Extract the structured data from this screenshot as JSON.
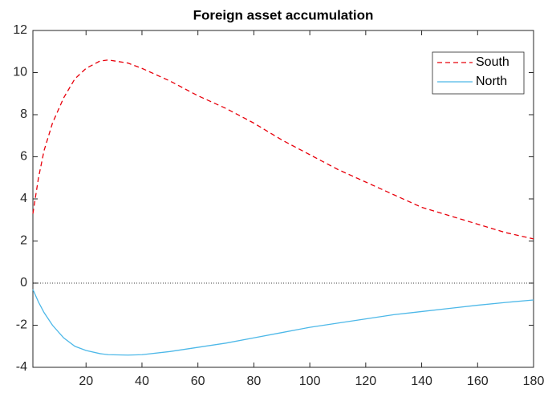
{
  "chart_data": {
    "type": "line",
    "title": "Foreign asset accumulation",
    "x": [
      1,
      3,
      5,
      8,
      12,
      16,
      20,
      25,
      28,
      35,
      40,
      50,
      60,
      70,
      80,
      90,
      100,
      110,
      120,
      130,
      140,
      150,
      160,
      170,
      180
    ],
    "series": [
      {
        "name": "South",
        "color": "#e8000b",
        "dash": "dashed",
        "values": [
          3.3,
          5.0,
          6.3,
          7.6,
          8.8,
          9.7,
          10.2,
          10.55,
          10.6,
          10.45,
          10.2,
          9.6,
          8.9,
          8.3,
          7.6,
          6.8,
          6.1,
          5.4,
          4.8,
          4.2,
          3.6,
          3.2,
          2.8,
          2.4,
          2.1
        ]
      },
      {
        "name": "North",
        "color": "#4db8e8",
        "dash": "solid",
        "values": [
          -0.3,
          -0.9,
          -1.4,
          -2.0,
          -2.6,
          -3.0,
          -3.2,
          -3.35,
          -3.4,
          -3.42,
          -3.4,
          -3.25,
          -3.05,
          -2.85,
          -2.6,
          -2.35,
          -2.1,
          -1.9,
          -1.7,
          -1.5,
          -1.35,
          -1.2,
          -1.05,
          -0.92,
          -0.8
        ]
      }
    ],
    "xlim": [
      1,
      180
    ],
    "xticks": [
      20,
      40,
      60,
      80,
      100,
      120,
      140,
      160,
      180
    ],
    "ylim": [
      -4,
      12
    ],
    "yticks": [
      -4,
      -2,
      0,
      2,
      4,
      6,
      8,
      10,
      12
    ],
    "reference_line": 0,
    "legend": "northeast",
    "grid": false
  }
}
